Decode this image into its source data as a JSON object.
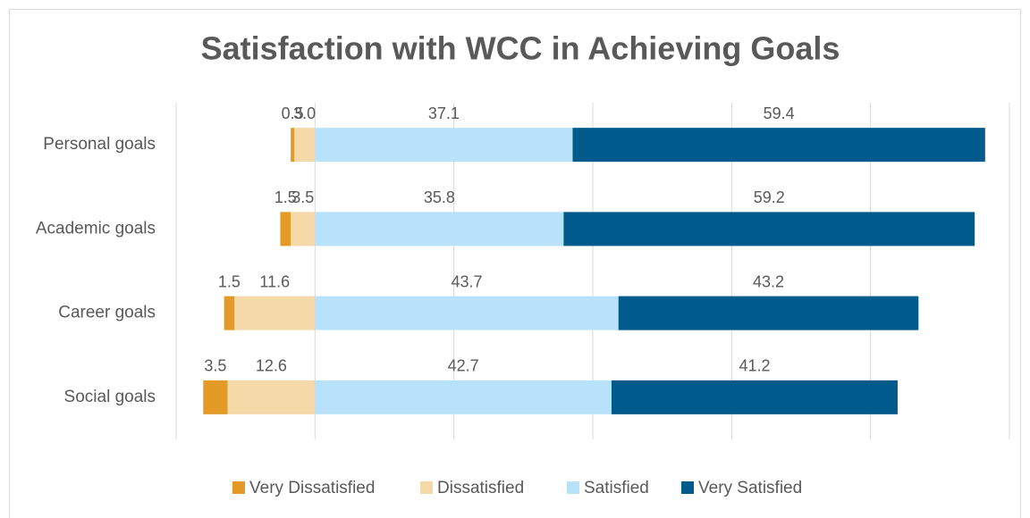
{
  "chart_data": {
    "type": "diverging_bar",
    "title": "Satisfaction with WCC in Achieving Goals",
    "categories": [
      "Personal goals",
      "Academic goals",
      "Career goals",
      "Social goals"
    ],
    "series": [
      {
        "name": "Very Dissatisfied",
        "color": "#e39a27",
        "values": [
          -0.5,
          -1.5,
          -1.5,
          -3.5
        ],
        "value_labels": [
          "0.5",
          "1.5",
          "1.5",
          "3.5"
        ]
      },
      {
        "name": "Dissatisfied",
        "color": "#f5d9a8",
        "values": [
          -3.0,
          -3.5,
          -11.6,
          -12.6
        ],
        "value_labels": [
          "3.0",
          "3.5",
          "11.6",
          "12.6"
        ]
      },
      {
        "name": "Satisfied",
        "color": "#b7e2f9",
        "values": [
          37.1,
          35.8,
          43.7,
          42.7
        ]
      },
      {
        "name": "Very Satisfied",
        "color": "#005a8c",
        "values": [
          59.4,
          59.2,
          43.2,
          41.2
        ]
      }
    ],
    "xlim": [
      -20,
      100
    ],
    "xticks": [
      -20,
      0,
      20,
      40,
      60,
      80,
      100
    ],
    "grid": true,
    "legend": "bottom"
  }
}
